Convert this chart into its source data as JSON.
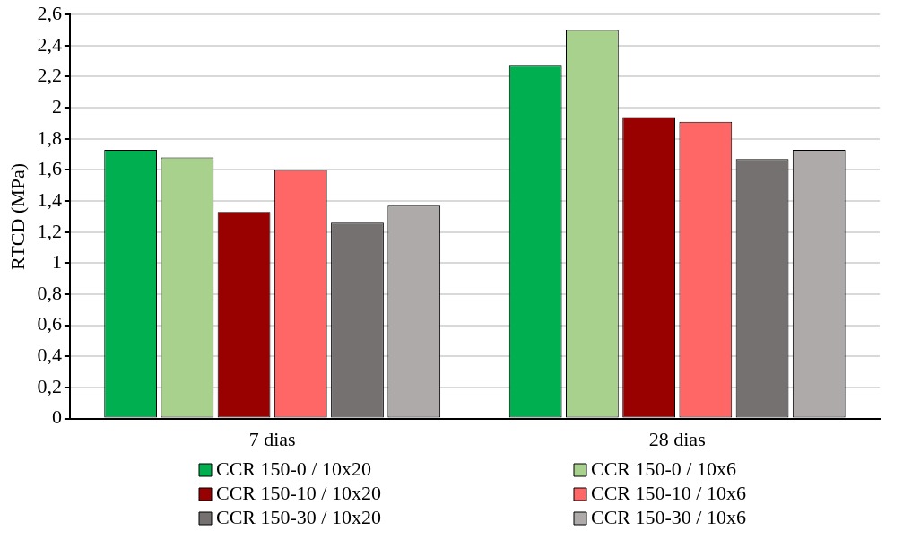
{
  "chart_data": {
    "type": "bar",
    "ylabel": "RTCD (MPa)",
    "categories": [
      "7 dias",
      "28 dias"
    ],
    "series": [
      {
        "name": "CCR 150-0 / 10x20",
        "color": "#00b050",
        "values": [
          1.73,
          2.27
        ]
      },
      {
        "name": "CCR 150-0 / 10x6",
        "color": "#a9d18e",
        "values": [
          1.68,
          2.5
        ]
      },
      {
        "name": "CCR 150-10 / 10x20",
        "color": "#990000",
        "values": [
          1.33,
          1.94
        ]
      },
      {
        "name": "CCR 150-10 / 10x6",
        "color": "#ff6666",
        "values": [
          1.6,
          1.91
        ]
      },
      {
        "name": "CCR 150-30 / 10x20",
        "color": "#767171",
        "values": [
          1.26,
          1.67
        ]
      },
      {
        "name": "CCR 150-30 / 10x6",
        "color": "#aeaaaa",
        "values": [
          1.37,
          1.73
        ]
      }
    ],
    "ylim": [
      0,
      2.6
    ],
    "yticks": [
      {
        "value": 0,
        "label": "0"
      },
      {
        "value": 0.2,
        "label": "0,2"
      },
      {
        "value": 0.4,
        "label": "0,4"
      },
      {
        "value": 0.6,
        "label": "0,6"
      },
      {
        "value": 0.8,
        "label": "0,8"
      },
      {
        "value": 1,
        "label": "1"
      },
      {
        "value": 1.2,
        "label": "1,2"
      },
      {
        "value": 1.4,
        "label": "1,4"
      },
      {
        "value": 1.6,
        "label": "1,6"
      },
      {
        "value": 1.8,
        "label": "1,8"
      },
      {
        "value": 2,
        "label": "2"
      },
      {
        "value": 2.2,
        "label": "2,2"
      },
      {
        "value": 2.4,
        "label": "2,4"
      },
      {
        "value": 2.6,
        "label": "2,6"
      }
    ],
    "grid": "y",
    "legend": "bottom"
  }
}
